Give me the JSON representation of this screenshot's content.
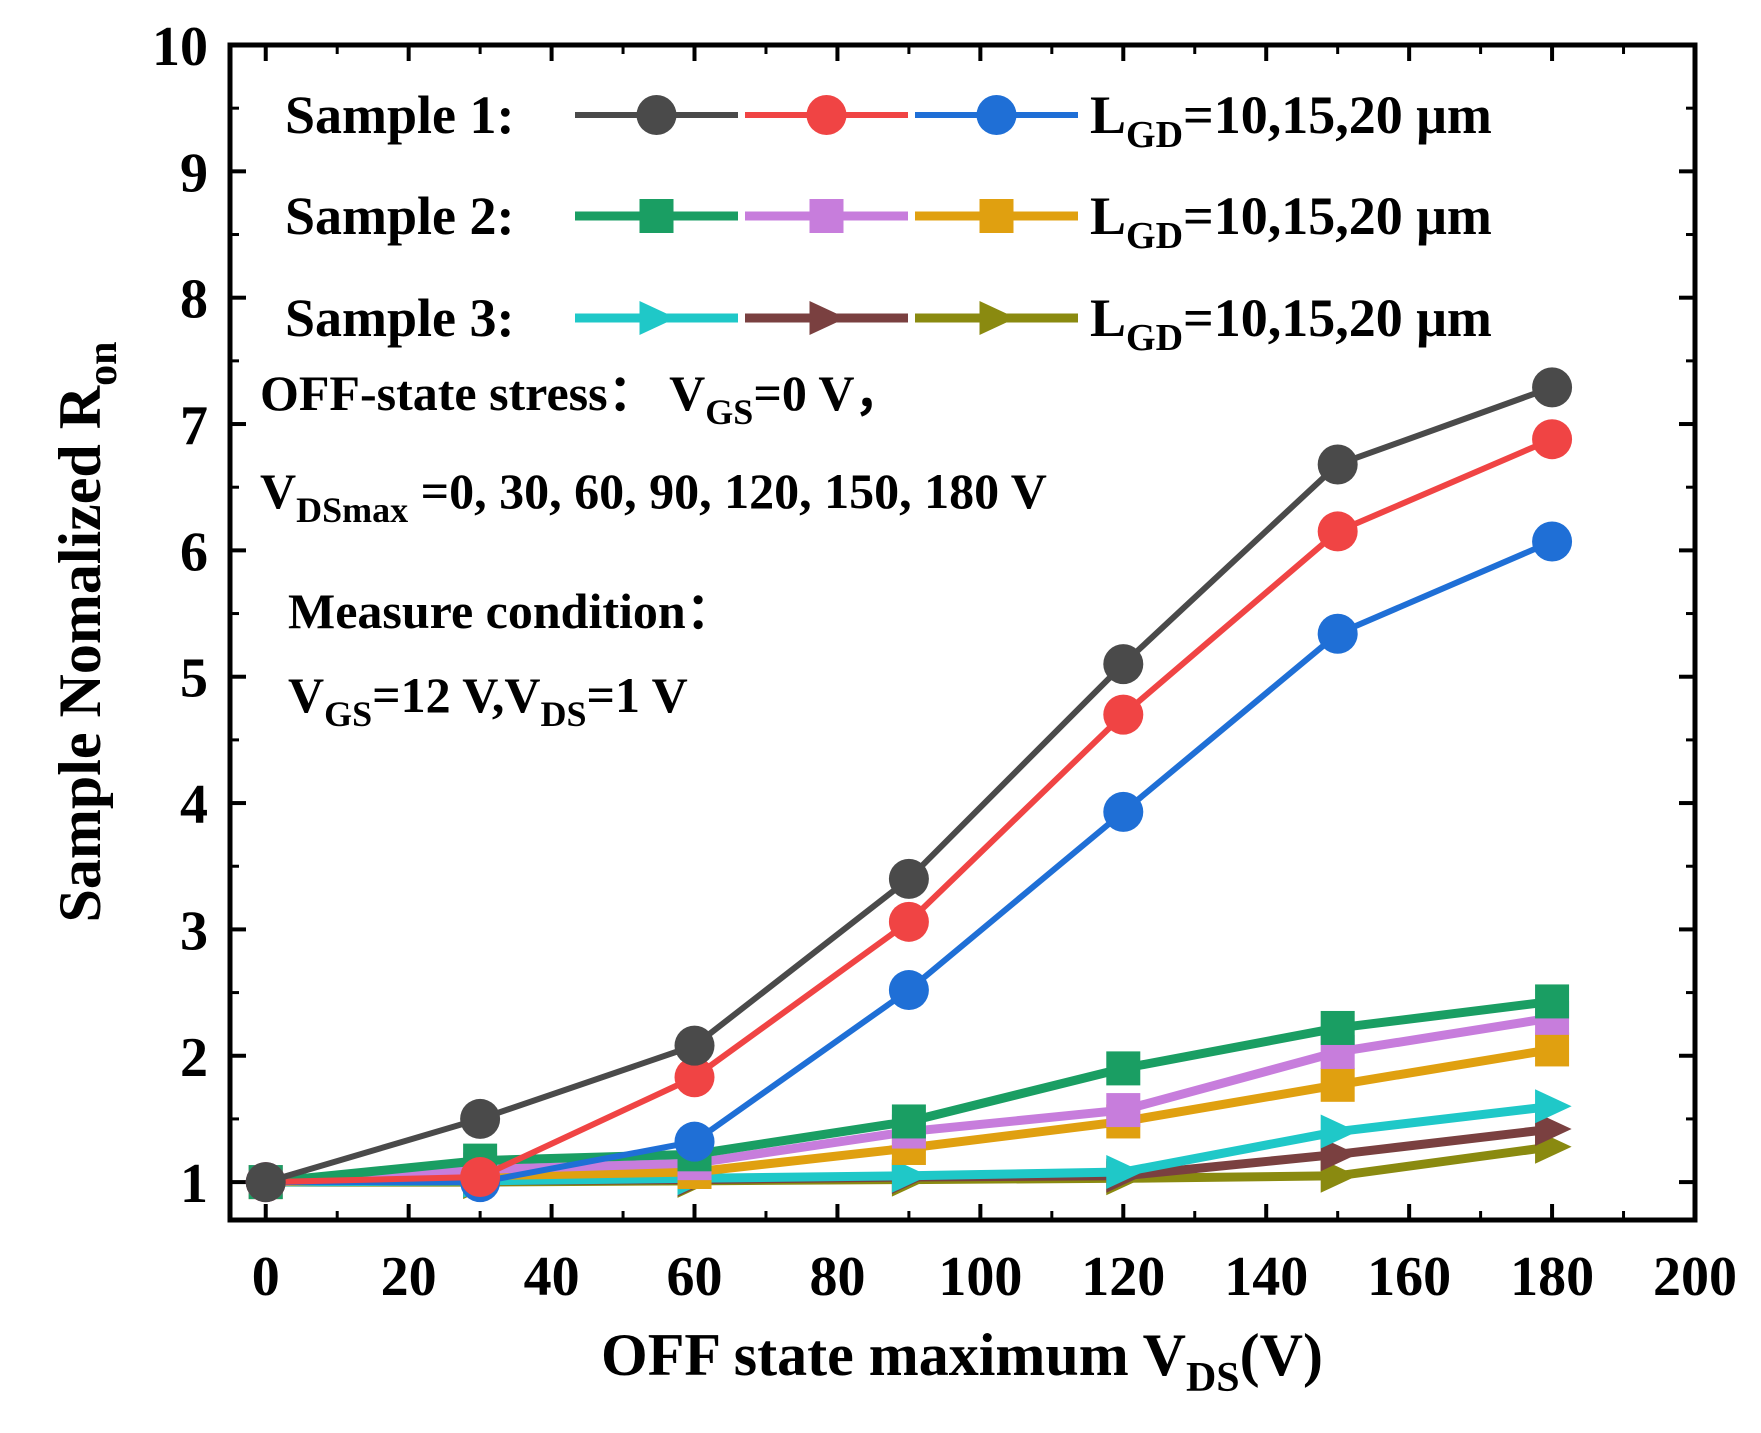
{
  "chart_data": {
    "type": "line",
    "title": "",
    "xlabel": {
      "main": "OFF state maximum V",
      "sub": "DS",
      "tail": "(V)"
    },
    "ylabel": {
      "main": "Sample Nomalized R",
      "sub": "on"
    },
    "xlim": [
      -5,
      200
    ],
    "ylim": [
      0.7,
      10
    ],
    "xticks": [
      0,
      20,
      40,
      60,
      80,
      100,
      120,
      140,
      160,
      180,
      200
    ],
    "yticks": [
      1,
      2,
      3,
      4,
      5,
      6,
      7,
      8,
      9,
      10
    ],
    "x": [
      0,
      30,
      60,
      90,
      120,
      150,
      180
    ],
    "series": [
      {
        "name": "Sample 1 LGD=10 μm",
        "color": "#4a4a4a",
        "marker": "circle",
        "values": [
          1.0,
          1.5,
          2.08,
          3.4,
          5.1,
          6.68,
          7.29
        ]
      },
      {
        "name": "Sample 1 LGD=15 μm",
        "color": "#f04444",
        "marker": "circle",
        "values": [
          1.0,
          1.04,
          1.83,
          3.06,
          4.7,
          6.15,
          6.88
        ]
      },
      {
        "name": "Sample 1 LGD=20 μm",
        "color": "#1f6fd6",
        "marker": "circle",
        "values": [
          1.0,
          1.0,
          1.32,
          2.52,
          3.93,
          5.34,
          6.07
        ]
      },
      {
        "name": "Sample 2 LGD=10 μm",
        "color": "#1a9e63",
        "marker": "square",
        "values": [
          1.0,
          1.17,
          1.22,
          1.48,
          1.9,
          2.22,
          2.43
        ]
      },
      {
        "name": "Sample 2 LGD=15 μm",
        "color": "#c77ddc",
        "marker": "square",
        "values": [
          1.0,
          1.1,
          1.15,
          1.4,
          1.57,
          2.03,
          2.3
        ]
      },
      {
        "name": "Sample 2 LGD=20 μm",
        "color": "#e0a010",
        "marker": "square",
        "values": [
          1.0,
          1.05,
          1.08,
          1.27,
          1.48,
          1.77,
          2.05
        ]
      },
      {
        "name": "Sample 3 LGD=10 μm",
        "color": "#1fc8c8",
        "marker": "triangle",
        "values": [
          1.0,
          1.01,
          1.03,
          1.05,
          1.08,
          1.4,
          1.6
        ]
      },
      {
        "name": "Sample 3 LGD=15 μm",
        "color": "#7a4040",
        "marker": "triangle",
        "values": [
          1.0,
          1.01,
          1.02,
          1.04,
          1.05,
          1.22,
          1.42
        ]
      },
      {
        "name": "Sample 3 LGD=20 μm",
        "color": "#8a8a10",
        "marker": "triangle",
        "values": [
          1.0,
          1.0,
          1.01,
          1.02,
          1.03,
          1.05,
          1.28
        ]
      }
    ],
    "legend": [
      {
        "label": "Sample 1:",
        "lgd_main": "L",
        "lgd_sub": "GD",
        "lgd_tail": "=10,15,20 μm"
      },
      {
        "label": "Sample 2:",
        "lgd_main": "L",
        "lgd_sub": "GD",
        "lgd_tail": "=10,15,20 μm"
      },
      {
        "label": "Sample 3:",
        "lgd_main": "L",
        "lgd_sub": "GD",
        "lgd_tail": "=10,15,20 μm"
      }
    ],
    "annotations": {
      "stress": {
        "main": "OFF-state stress： V",
        "sub": "GS",
        "tail": "=0 V，"
      },
      "vds": {
        "main": "V",
        "sub": "DSmax",
        "tail": " =0, 30, 60, 90, 120, 150, 180 V"
      },
      "measure": "Measure condition：",
      "cond": {
        "a": "V",
        "a_sub": "GS",
        "b": "=12 V,V",
        "b_sub": "DS",
        "c": "=1 V"
      }
    }
  }
}
